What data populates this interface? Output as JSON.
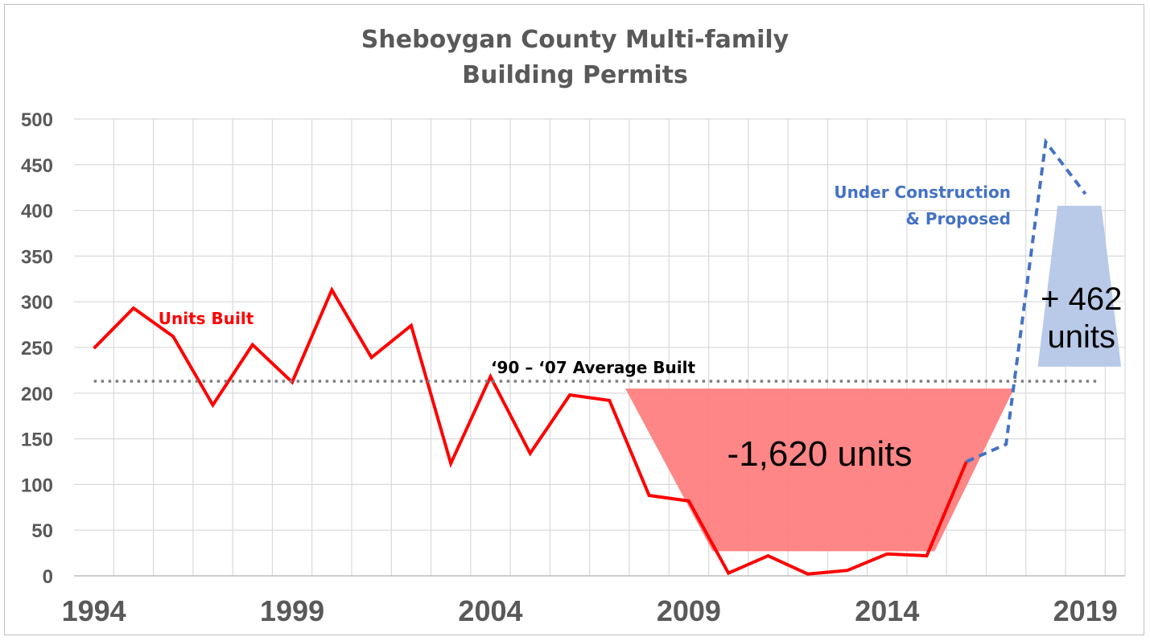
{
  "chart_data": {
    "type": "line",
    "title_lines": [
      "Sheboygan County Multi-family",
      "Building Permits"
    ],
    "x": [
      1994,
      1995,
      1996,
      1997,
      1998,
      1999,
      2000,
      2001,
      2002,
      2003,
      2004,
      2005,
      2006,
      2007,
      2008,
      2009,
      2010,
      2011,
      2012,
      2013,
      2014,
      2015,
      2016,
      2017,
      2018,
      2019
    ],
    "xlim": [
      1993.5,
      2020
    ],
    "x_tick_labels": [
      "1994",
      "1999",
      "2004",
      "2009",
      "2014",
      "2019"
    ],
    "x_tick_values": [
      1994,
      1999,
      2004,
      2009,
      2014,
      2019
    ],
    "ylim": [
      0,
      500
    ],
    "y_ticks": [
      0,
      50,
      100,
      150,
      200,
      250,
      300,
      350,
      400,
      450,
      500
    ],
    "grid": true,
    "series": [
      {
        "name": "Units Built",
        "color": "#ff0000",
        "style": "solid",
        "x": [
          1994,
          1995,
          1996,
          1997,
          1998,
          1999,
          2000,
          2001,
          2002,
          2003,
          2004,
          2005,
          2006,
          2007,
          2008,
          2009,
          2010,
          2011,
          2012,
          2013,
          2014,
          2015,
          2016
        ],
        "values": [
          249,
          293,
          262,
          187,
          253,
          212,
          313,
          239,
          274,
          123,
          218,
          134,
          198,
          192,
          88,
          82,
          3,
          22,
          2,
          6,
          24,
          22,
          125
        ]
      },
      {
        "name": "Under Construction & Proposed",
        "label_lines": [
          "Under Construction",
          "& Proposed"
        ],
        "color": "#4472c4",
        "style": "dashed",
        "x": [
          2016,
          2017,
          2018,
          2019
        ],
        "values": [
          125,
          144,
          475,
          418
        ]
      },
      {
        "name": "'90 – '07 Average Built",
        "label": "‘90 – ‘07 Average Built",
        "color": "#7f7f7f",
        "style": "dotted",
        "x": [
          1994,
          2019.3
        ],
        "values": [
          213,
          213
        ]
      }
    ],
    "annotations": [
      {
        "text": "-1,620 units",
        "color": "#ff8080",
        "shape": "trapezoid",
        "top": [
          2007.4,
          2017.2,
          205
        ],
        "bottom": [
          2009.6,
          2015.2,
          27
        ],
        "text_x": 2012.3,
        "text_y": 133
      },
      {
        "text_lines": [
          "+ 462",
          "units"
        ],
        "color": "#b4c7e7",
        "shape": "trapezoid",
        "top": [
          2018.3,
          2019.4,
          405
        ],
        "bottom": [
          2017.8,
          2019.9,
          229
        ],
        "text_x": 2018.9,
        "text_y": 300
      }
    ]
  }
}
